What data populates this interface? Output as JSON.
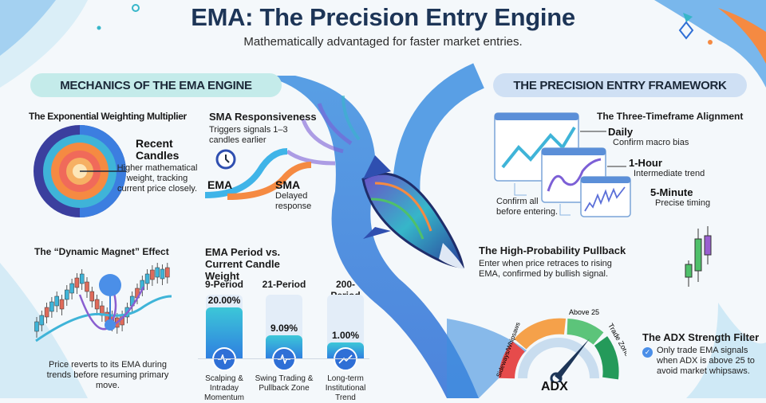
{
  "header": {
    "title": "EMA: The Precision Entry Engine",
    "subtitle": "Mathematically advantaged for faster market entries."
  },
  "left_section": {
    "label": "MECHANICS OF THE EMA ENGINE",
    "weighting": {
      "heading": "The Exponential Weighting Multiplier",
      "callout_title": "Recent Candles",
      "callout_text": "Higher mathematical weight, tracking current price closely."
    },
    "responsiveness": {
      "heading": "SMA Responsiveness",
      "note": "Triggers signals 1–3 candles earlier",
      "ema_label": "EMA",
      "sma_label": "SMA",
      "sma_note": "Delayed response",
      "icon": "clock-icon"
    },
    "magnet": {
      "heading": "The “Dynamic Magnet” Effect",
      "caption": "Price reverts to its EMA during trends before resuming primary move."
    },
    "period_weight": {
      "heading": "EMA Period vs. Current Candle Weight",
      "columns": [
        {
          "period": "9-Period",
          "weight_label": "20.00%",
          "weight": 20.0,
          "use": "Scalping & Intraday Momentum",
          "icon": "pulse-icon"
        },
        {
          "period": "21-Period",
          "weight_label": "9.09%",
          "weight": 9.09,
          "use": "Swing Trading & Pullback Zone",
          "icon": "pulse-icon"
        },
        {
          "period": "200-Period",
          "weight_label": "1.00%",
          "weight": 1.0,
          "use": "Long-term Institutional Trend",
          "icon": "trend-up-icon"
        }
      ]
    }
  },
  "right_section": {
    "label": "THE PRECISION ENTRY FRAMEWORK",
    "timeframes": {
      "heading": "The Three-Timeframe Alignment",
      "items": [
        {
          "name": "Daily",
          "desc": "Confirm macro bias"
        },
        {
          "name": "1-Hour",
          "desc": "Intermediate trend"
        },
        {
          "name": "5-Minute",
          "desc": "Precise timing"
        }
      ],
      "note": "Confirm all before entering."
    },
    "pullback": {
      "heading": "The High-Probability Pullback",
      "text": "Enter when price retraces to rising EMA, confirmed by bullish signal."
    },
    "adx": {
      "heading": "The ADX Strength Filter",
      "text": "Only trade EMA signals when ADX is above 25 to avoid market whipsaws.",
      "gauge_label": "ADX",
      "zone_low": "Sideways/Whipsaws",
      "zone_mid": "Above 25",
      "zone_high": "Trade Zone",
      "icon": "check-circle-icon"
    }
  },
  "colors": {
    "title": "#1d3557",
    "accent_blue": "#2f6fd6",
    "accent_teal": "#3cc7d8",
    "accent_orange": "#f58a42",
    "bull": "#4fc06a",
    "bear": "#e06a5a"
  }
}
